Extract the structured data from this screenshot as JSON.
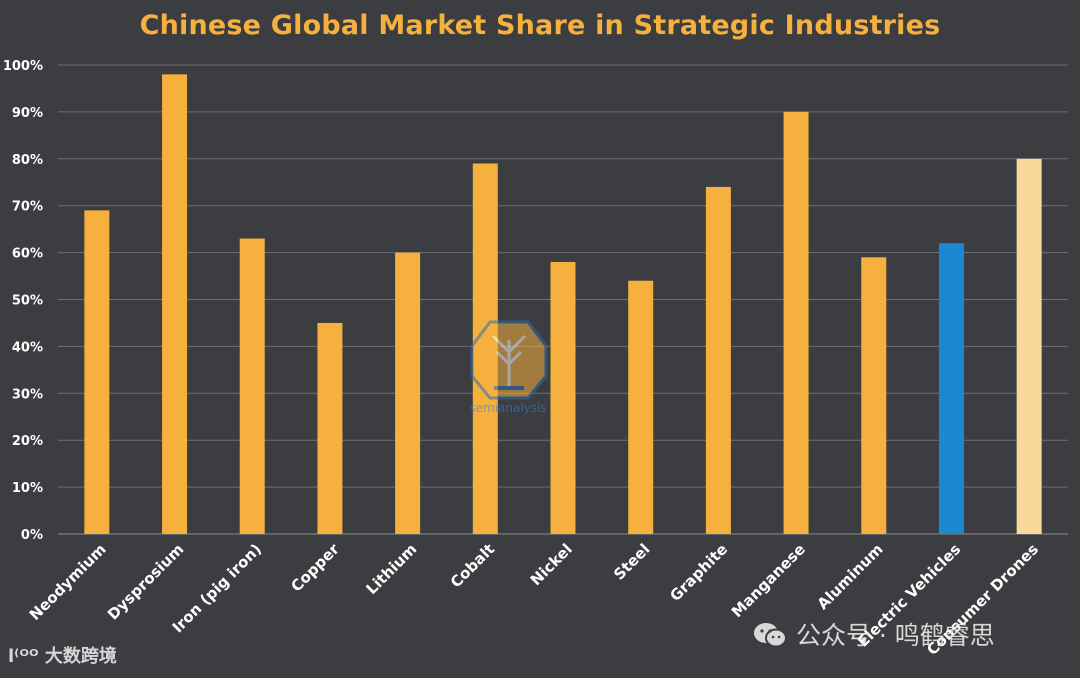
{
  "watermarks": {
    "center": "semianalysis",
    "bottom_left": "大数跨境",
    "bottom_right": "公众号 · 鸣鹤睿思"
  },
  "colors": {
    "background": "#3b3d40",
    "title": "#f5b03e",
    "bar_default": "#f5b03e",
    "bar_highlight_blue": "#1c88d4",
    "bar_highlight_light": "#fad89b",
    "gridline": "#6c6e72",
    "axis_text": "#ffffff"
  },
  "chart_data": {
    "type": "bar",
    "title": "Chinese Global Market Share in Strategic Industries",
    "xlabel": "",
    "ylabel": "",
    "ylim": [
      0,
      100
    ],
    "y_ticks": [
      "0%",
      "10%",
      "20%",
      "30%",
      "40%",
      "50%",
      "60%",
      "70%",
      "80%",
      "90%",
      "100%"
    ],
    "grid": true,
    "categories": [
      "Neodymium",
      "Dysprosium",
      "Iron (pig iron)",
      "Copper",
      "Lithium",
      "Cobalt",
      "Nickel",
      "Steel",
      "Graphite",
      "Manganese",
      "Aluminum",
      "Electric Vehicles",
      "Consumer Drones"
    ],
    "values": [
      69,
      98,
      63,
      45,
      60,
      79,
      58,
      54,
      74,
      90,
      59,
      62,
      80
    ],
    "bar_colors": [
      "#f5b03e",
      "#f5b03e",
      "#f5b03e",
      "#f5b03e",
      "#f5b03e",
      "#f5b03e",
      "#f5b03e",
      "#f5b03e",
      "#f5b03e",
      "#f5b03e",
      "#f5b03e",
      "#1c88d4",
      "#fad89b"
    ]
  }
}
